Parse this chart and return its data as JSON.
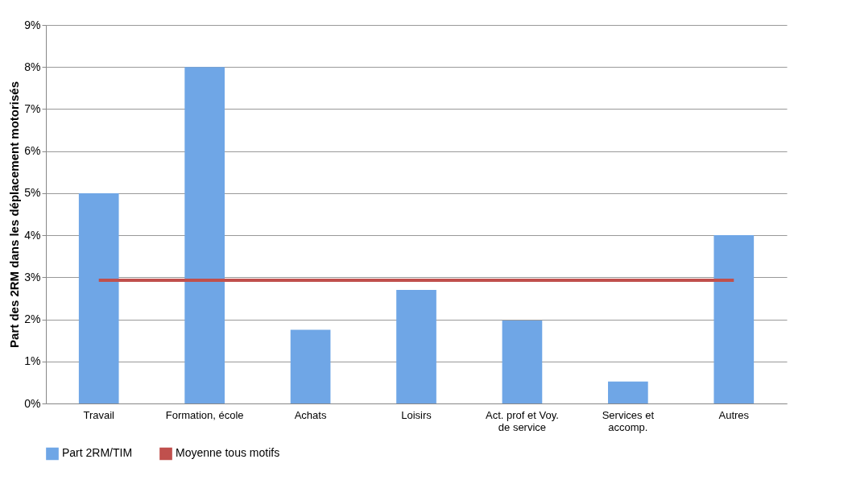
{
  "chart_data": {
    "type": "bar",
    "ylabel": "Part des 2RM dans les déplacement motorisés",
    "categories": [
      "Travail",
      "Formation, école",
      "Achats",
      "Loisirs",
      "Act. prof et Voy. de service",
      "Services et accomp.",
      "Autres"
    ],
    "series": [
      {
        "name": "Part 2RM/TIM",
        "color": "#6fa6e6",
        "values": [
          5.0,
          8.0,
          1.75,
          2.7,
          1.97,
          0.52,
          4.0
        ]
      },
      {
        "name": "Moyenne tous motifs",
        "type": "line",
        "color": "#c0504d",
        "values": [
          2.93,
          2.93,
          2.93,
          2.93,
          2.93,
          2.93,
          2.93
        ]
      }
    ],
    "ylim": [
      0,
      9
    ],
    "yticks": [
      {
        "value": 0,
        "label": "0%"
      },
      {
        "value": 1,
        "label": "1%"
      },
      {
        "value": 2,
        "label": "2%"
      },
      {
        "value": 3,
        "label": "3%"
      },
      {
        "value": 4,
        "label": "4%"
      },
      {
        "value": 5,
        "label": "5%"
      },
      {
        "value": 6,
        "label": "6%"
      },
      {
        "value": 7,
        "label": "7%"
      },
      {
        "value": 8,
        "label": "8%"
      },
      {
        "value": 9,
        "label": "9%"
      }
    ],
    "grid": "y",
    "legend": "bottom"
  }
}
